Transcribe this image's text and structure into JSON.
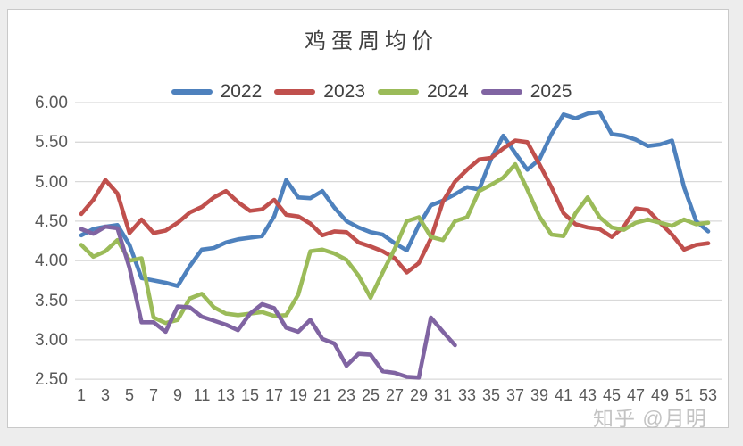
{
  "page": {
    "watermark": "知乎 @月明"
  },
  "chart_data": {
    "type": "line",
    "title": "鸡蛋周均价",
    "xlabel": "",
    "ylabel": "",
    "x_unit": "week",
    "x": [
      1,
      2,
      3,
      4,
      5,
      6,
      7,
      8,
      9,
      10,
      11,
      12,
      13,
      14,
      15,
      16,
      17,
      18,
      19,
      20,
      21,
      22,
      23,
      24,
      25,
      26,
      27,
      28,
      29,
      30,
      31,
      32,
      33,
      34,
      35,
      36,
      37,
      38,
      39,
      40,
      41,
      42,
      43,
      44,
      45,
      46,
      47,
      48,
      49,
      50,
      51,
      52,
      53
    ],
    "x_tick_labels": [
      "1",
      "3",
      "5",
      "7",
      "9",
      "11",
      "13",
      "15",
      "17",
      "19",
      "21",
      "23",
      "25",
      "27",
      "29",
      "31",
      "33",
      "35",
      "37",
      "39",
      "41",
      "43",
      "45",
      "47",
      "49",
      "51",
      "53"
    ],
    "y_tick_labels": [
      "6.00",
      "5.50",
      "5.00",
      "4.50",
      "4.00",
      "3.50",
      "3.00",
      "2.50"
    ],
    "ylim": [
      2.5,
      6.0
    ],
    "grid": "horizontal",
    "legend_position": "top",
    "series": [
      {
        "name": "2022",
        "color": "#4E81BD",
        "values": [
          4.32,
          4.4,
          4.43,
          4.45,
          4.2,
          3.78,
          3.75,
          3.72,
          3.68,
          3.93,
          4.14,
          4.16,
          4.23,
          4.27,
          4.29,
          4.31,
          4.56,
          5.02,
          4.8,
          4.79,
          4.88,
          4.67,
          4.5,
          4.42,
          4.36,
          4.33,
          4.22,
          4.13,
          4.45,
          4.7,
          4.76,
          4.84,
          4.93,
          4.9,
          5.29,
          5.58,
          5.36,
          5.15,
          5.28,
          5.6,
          5.85,
          5.8,
          5.86,
          5.88,
          5.6,
          5.58,
          5.53,
          5.45,
          5.47,
          5.52,
          4.93,
          4.5,
          4.37
        ]
      },
      {
        "name": "2023",
        "color": "#C0504D",
        "values": [
          4.59,
          4.77,
          5.02,
          4.85,
          4.35,
          4.52,
          4.35,
          4.38,
          4.48,
          4.61,
          4.68,
          4.8,
          4.88,
          4.74,
          4.63,
          4.65,
          4.77,
          4.58,
          4.56,
          4.47,
          4.32,
          4.37,
          4.36,
          4.23,
          4.18,
          4.12,
          4.03,
          3.85,
          3.97,
          4.28,
          4.75,
          5.0,
          5.15,
          5.28,
          5.3,
          5.42,
          5.52,
          5.5,
          5.22,
          4.93,
          4.6,
          4.46,
          4.42,
          4.4,
          4.3,
          4.43,
          4.66,
          4.64,
          4.48,
          4.33,
          4.14,
          4.2,
          4.22
        ]
      },
      {
        "name": "2024",
        "color": "#9BBB59",
        "values": [
          4.2,
          4.05,
          4.12,
          4.26,
          4.0,
          4.03,
          3.28,
          3.21,
          3.25,
          3.52,
          3.58,
          3.41,
          3.33,
          3.31,
          3.33,
          3.35,
          3.3,
          3.31,
          3.57,
          4.12,
          4.14,
          4.09,
          4.01,
          3.81,
          3.53,
          3.85,
          4.15,
          4.5,
          4.55,
          4.3,
          4.26,
          4.5,
          4.55,
          4.88,
          4.96,
          5.05,
          5.22,
          4.9,
          4.56,
          4.33,
          4.31,
          4.6,
          4.8,
          4.55,
          4.42,
          4.39,
          4.48,
          4.52,
          4.48,
          4.44,
          4.52,
          4.46,
          4.48
        ]
      },
      {
        "name": "2025",
        "color": "#8064A2",
        "values": [
          4.4,
          4.34,
          4.43,
          4.41,
          3.91,
          3.22,
          3.22,
          3.1,
          3.42,
          3.41,
          3.29,
          3.24,
          3.19,
          3.12,
          3.33,
          3.45,
          3.4,
          3.15,
          3.1,
          3.25,
          3.01,
          2.95,
          2.67,
          2.82,
          2.81,
          2.6,
          2.58,
          2.53,
          2.52,
          3.28,
          3.1,
          2.93
        ]
      }
    ]
  }
}
